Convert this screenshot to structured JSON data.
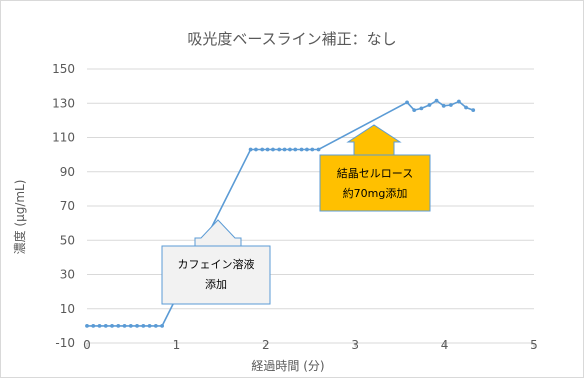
{
  "chart_data": {
    "type": "line",
    "title": "吸光度ベースライン補正：なし",
    "xlabel": "経過時間 (分)",
    "ylabel": "濃度 (µg/mL)",
    "xlim": [
      0,
      5
    ],
    "ylim": [
      -10,
      150
    ],
    "x_ticks": [
      "0",
      "1",
      "2",
      "3",
      "4",
      "5"
    ],
    "y_ticks": [
      "-10",
      "10",
      "30",
      "50",
      "70",
      "90",
      "110",
      "130",
      "150"
    ],
    "grid": true,
    "series": [
      {
        "color": "#5b9bd5",
        "points": [
          [
            0.0,
            0
          ],
          [
            0.07,
            0
          ],
          [
            0.14,
            0
          ],
          [
            0.21,
            0
          ],
          [
            0.28,
            0
          ],
          [
            0.35,
            0
          ],
          [
            0.42,
            0
          ],
          [
            0.49,
            0
          ],
          [
            0.56,
            0
          ],
          [
            0.63,
            0
          ],
          [
            0.7,
            0
          ],
          [
            0.77,
            0
          ],
          [
            0.84,
            0
          ],
          [
            1.83,
            103
          ],
          [
            1.89,
            103
          ],
          [
            1.96,
            103
          ],
          [
            2.02,
            103
          ],
          [
            2.08,
            103
          ],
          [
            2.15,
            103
          ],
          [
            2.21,
            103
          ],
          [
            2.27,
            103
          ],
          [
            2.33,
            103
          ],
          [
            2.4,
            103
          ],
          [
            2.46,
            103
          ],
          [
            2.52,
            103
          ],
          [
            2.59,
            103
          ],
          [
            3.58,
            130.5
          ],
          [
            3.66,
            126
          ],
          [
            3.74,
            127
          ],
          [
            3.83,
            129
          ],
          [
            3.91,
            131.5
          ],
          [
            3.99,
            128.5
          ],
          [
            4.07,
            129
          ],
          [
            4.16,
            131
          ],
          [
            4.24,
            127.5
          ],
          [
            4.32,
            126
          ]
        ]
      }
    ],
    "annotations": [
      {
        "id": "caffeine",
        "lines": [
          "カフェイン溶液",
          "添加"
        ],
        "fill": "#f2f2f2",
        "stroke": "#5b9bd5"
      },
      {
        "id": "cellulose",
        "lines": [
          "結晶セルロース",
          "約70mg添加"
        ],
        "fill": "#ffc000",
        "stroke": "#5b9bd5"
      }
    ]
  }
}
